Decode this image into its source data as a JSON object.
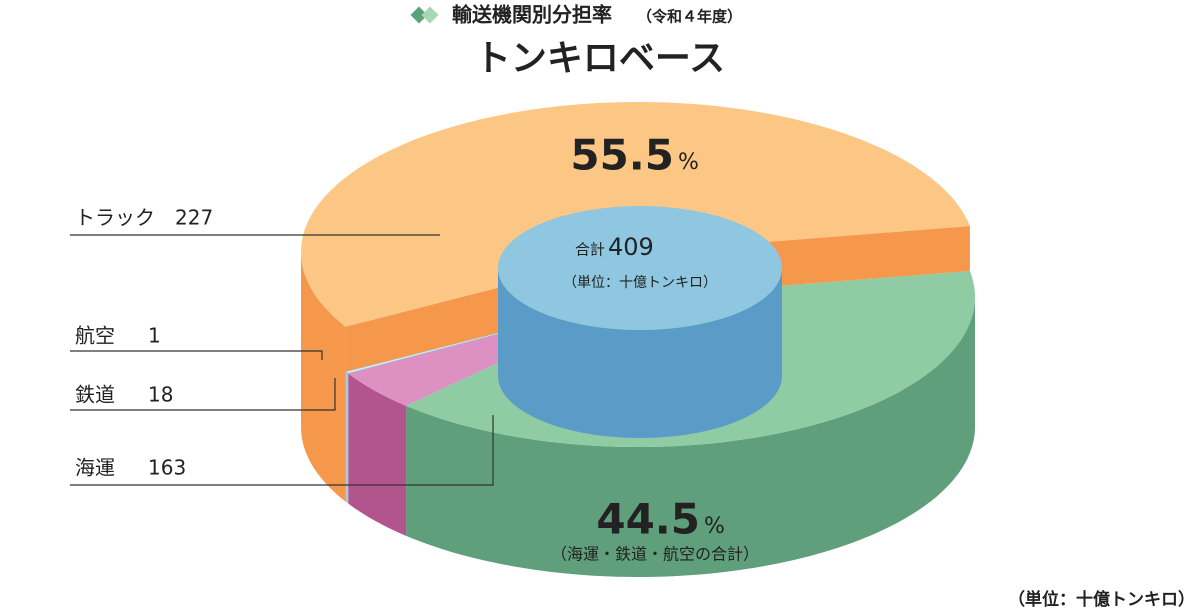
{
  "chart_data": {
    "type": "pie3d",
    "title": "輸送機関別分担率",
    "title_note": "（令和４年度）",
    "subtitle": "トンキロベース",
    "categories": [
      "トラック",
      "航空",
      "鉄道",
      "海運"
    ],
    "values": [
      227,
      1,
      18,
      163
    ],
    "colors": [
      "#fcc784",
      "#d6e8f2",
      "#dd90c2",
      "#8fcba3"
    ],
    "side_colors": [
      "#f5984c",
      "#a9c8da",
      "#b2558f",
      "#5f9f7b"
    ],
    "total_label": "合計",
    "total": 409,
    "center_unit": "（単位：十億トンキロ）",
    "shares": [
      55.5,
      44.5
    ],
    "share_unit": "%",
    "share_note": "（海運・鉄道・航空の合計）",
    "unit_note": "（単位：十億トンキロ）"
  }
}
